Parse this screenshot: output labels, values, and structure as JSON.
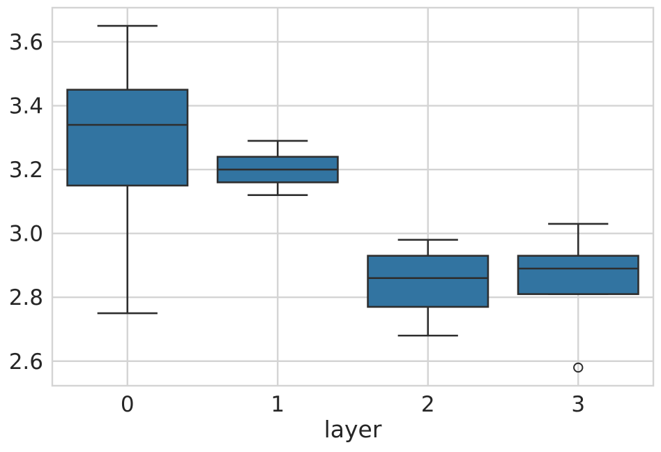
{
  "chart_data": {
    "type": "boxplot",
    "title": "",
    "xlabel": "layer",
    "ylabel": "",
    "categories": [
      "0",
      "1",
      "2",
      "3"
    ],
    "yticks": [
      2.6,
      2.8,
      3.0,
      3.2,
      3.4,
      3.6
    ],
    "ytick_precision": 1,
    "ylim": [
      2.523,
      3.707
    ],
    "grid": true,
    "legend": false,
    "boxes": [
      {
        "category": "0",
        "whisker_low": 2.75,
        "q1": 3.15,
        "median": 3.34,
        "q3": 3.45,
        "whisker_high": 3.65,
        "outliers": []
      },
      {
        "category": "1",
        "whisker_low": 3.12,
        "q1": 3.16,
        "median": 3.2,
        "q3": 3.24,
        "whisker_high": 3.29,
        "outliers": []
      },
      {
        "category": "2",
        "whisker_low": 2.68,
        "q1": 2.77,
        "median": 2.86,
        "q3": 2.93,
        "whisker_high": 2.98,
        "outliers": []
      },
      {
        "category": "3",
        "whisker_low": 2.81,
        "q1": 2.81,
        "median": 2.89,
        "q3": 2.93,
        "whisker_high": 3.03,
        "outliers": [
          2.58
        ]
      }
    ],
    "colors": {
      "box_fill": "#3274A1",
      "line": "#2E2E2E",
      "grid": "#D4D4D4",
      "text": "#262626",
      "background": "#FFFFFF"
    }
  }
}
